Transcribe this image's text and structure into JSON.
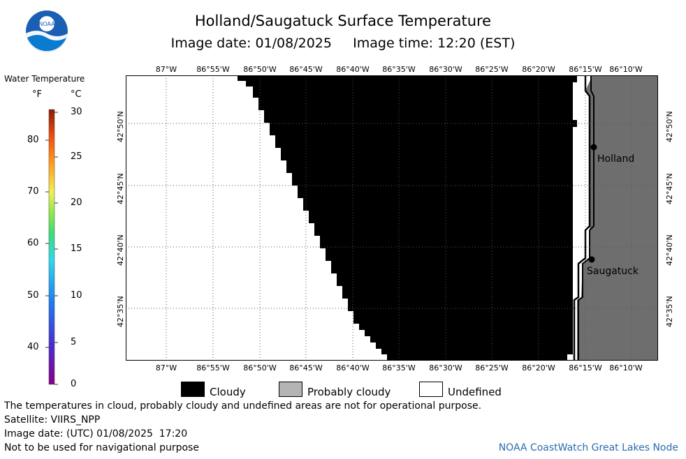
{
  "title": "Holland/Saugatuck Surface Temperature",
  "subtitle_date_label": "Image date: 01/08/2025",
  "subtitle_time_label": "Image time: 12:20 (EST)",
  "logo_text": "NOAA",
  "legend": {
    "title": "Water Temperature",
    "unit_f": "°F",
    "unit_c": "°C",
    "f_ticks": [
      "80",
      "70",
      "60",
      "50",
      "40"
    ],
    "c_ticks": [
      "30",
      "25",
      "20",
      "15",
      "10",
      "5",
      "0"
    ]
  },
  "map": {
    "lon_labels": [
      "87°W",
      "86°55'W",
      "86°50'W",
      "86°45'W",
      "86°40'W",
      "86°35'W",
      "86°30'W",
      "86°25'W",
      "86°20'W",
      "86°15'W",
      "86°10'W"
    ],
    "lat_labels": [
      "42°50'N",
      "42°45'N",
      "42°40'N",
      "42°35'N"
    ],
    "cities": [
      {
        "name": "Holland"
      },
      {
        "name": "Saugatuck"
      }
    ],
    "colors": {
      "cloudy": "#000000",
      "land": "#6e6e6e",
      "undefined": "#ffffff"
    }
  },
  "key": {
    "cloudy": "Cloudy",
    "probably_cloudy": "Probably cloudy",
    "undefined": "Undefined"
  },
  "footer": {
    "line1": "The temperatures in cloud, probably cloudy and undefined areas are not for operational purpose.",
    "line2": "Satellite: VIIRS_NPP",
    "line3": "Image date: (UTC) 01/08/2025  17:20",
    "line4": "Not to be used for navigational purpose",
    "credit": "NOAA CoastWatch Great Lakes Node"
  }
}
